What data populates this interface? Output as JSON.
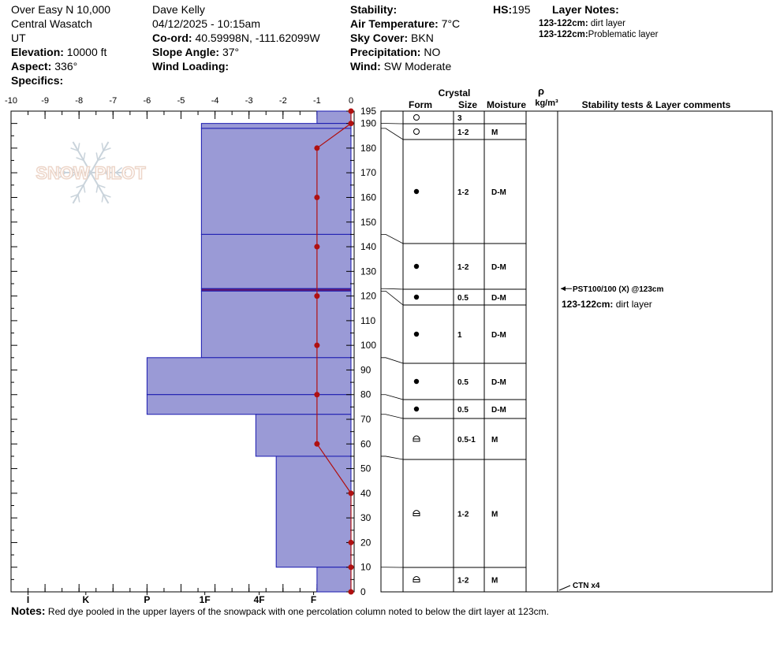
{
  "header": {
    "location": "Over Easy N 10,000",
    "range": "Central Wasatch",
    "state": "UT",
    "elevation_label": "Elevation:",
    "elevation": "10000 ft",
    "aspect_label": "Aspect:",
    "aspect": "336°",
    "specifics_label": "Specifics:",
    "observer": "Dave Kelly",
    "datetime": "04/12/2025 - 10:15am",
    "coord_label": "Co-ord:",
    "coord": "40.59998N, -111.62099W",
    "slope_label": "Slope Angle:",
    "slope": "37°",
    "wind_loading_label": "Wind Loading:",
    "stability_label": "Stability:",
    "air_temp_label": "Air Temperature:",
    "air_temp": "7°C",
    "sky_label": "Sky Cover:",
    "sky": "BKN",
    "precip_label": "Precipitation:",
    "precip": "NO",
    "wind_label": "Wind:",
    "wind": "SW Moderate",
    "hs_label": "HS:",
    "hs": "195",
    "layer_notes_label": "Layer Notes:",
    "layer_notes": [
      {
        "range": "123-122cm:",
        "text": "dirt layer"
      },
      {
        "range": "123-122cm:",
        "text": "Problematic layer"
      }
    ]
  },
  "notes": {
    "label": "Notes:",
    "text": "Red dye pooled in the upper layers of the snowpack with one percolation column noted to below the dirt layer at 123cm."
  },
  "watermark": "SNOW PILOT",
  "colors": {
    "layer_fill": "#9a9ad6",
    "layer_stroke": "#1a1ab0",
    "highlight_layer": "#6a1a6a",
    "temp_line": "#b01010",
    "temp_marker": "#b01010"
  },
  "chart_data": {
    "type": "snow_profile",
    "temp_axis": {
      "ticks": [
        "-10",
        "-9",
        "-8",
        "-7",
        "-6",
        "-5",
        "-4",
        "-3",
        "-2",
        "-1",
        "0"
      ],
      "range": [
        -10,
        0
      ]
    },
    "height_axis": {
      "range": [
        0,
        195
      ],
      "ticks": [
        0,
        10,
        20,
        30,
        40,
        50,
        60,
        70,
        80,
        90,
        100,
        110,
        120,
        130,
        140,
        150,
        160,
        170,
        180,
        190,
        195
      ]
    },
    "hardness_labels": [
      "I",
      "K",
      "P",
      "1F",
      "4F",
      "F"
    ],
    "table_headers": {
      "crystal": "Crystal",
      "form": "Form",
      "size": "Size",
      "moisture": "Moisture",
      "rho": "ρ",
      "density_unit": "kg/m³",
      "comments": "Stability tests & Layer comments"
    },
    "layers": [
      {
        "top": 195,
        "bottom": 190,
        "hardness": 1.0,
        "form": "circle-open",
        "size": "3",
        "moisture": ""
      },
      {
        "top": 190,
        "bottom": 188,
        "hardness": 4.4,
        "form": "circle-open",
        "size": "1-2",
        "moisture": "M"
      },
      {
        "top": 188,
        "bottom": 145,
        "hardness": 4.4,
        "form": "dot",
        "size": "1-2",
        "moisture": "D-M"
      },
      {
        "top": 145,
        "bottom": 123,
        "hardness": 4.4,
        "form": "dot",
        "size": "1-2",
        "moisture": "D-M"
      },
      {
        "top": 123,
        "bottom": 122,
        "hardness": 4.4,
        "form": "dot",
        "size": "0.5",
        "moisture": "D-M",
        "highlight": true
      },
      {
        "top": 122,
        "bottom": 95,
        "hardness": 4.4,
        "form": "dot",
        "size": "1",
        "moisture": "D-M"
      },
      {
        "top": 95,
        "bottom": 80,
        "hardness": 6.0,
        "form": "dot",
        "size": "0.5",
        "moisture": "D-M"
      },
      {
        "top": 80,
        "bottom": 72,
        "hardness": 6.0,
        "form": "dot",
        "size": "0.5",
        "moisture": "D-M"
      },
      {
        "top": 72,
        "bottom": 55,
        "hardness": 2.8,
        "form": "cup",
        "size": "0.5-1",
        "moisture": "M"
      },
      {
        "top": 55,
        "bottom": 10,
        "hardness": 2.2,
        "form": "cup",
        "size": "1-2",
        "moisture": "M"
      },
      {
        "top": 10,
        "bottom": 0,
        "hardness": 1.0,
        "form": "cup",
        "size": "1-2",
        "moisture": "M"
      }
    ],
    "temperature": [
      {
        "height": 195,
        "temp": 0
      },
      {
        "height": 190,
        "temp": 0
      },
      {
        "height": 180,
        "temp": -1
      },
      {
        "height": 160,
        "temp": -1
      },
      {
        "height": 140,
        "temp": -1
      },
      {
        "height": 120,
        "temp": -1
      },
      {
        "height": 100,
        "temp": -1
      },
      {
        "height": 80,
        "temp": -1
      },
      {
        "height": 60,
        "temp": -1
      },
      {
        "height": 40,
        "temp": 0
      },
      {
        "height": 20,
        "temp": 0
      },
      {
        "height": 10,
        "temp": 0
      },
      {
        "height": 0,
        "temp": 0
      }
    ],
    "comments": [
      {
        "height": 123,
        "test": "PST100/100 (X) @123cm",
        "note_range": "123-122cm:",
        "note": "dirt layer"
      },
      {
        "height": 0,
        "test": "CTN x4"
      }
    ]
  }
}
